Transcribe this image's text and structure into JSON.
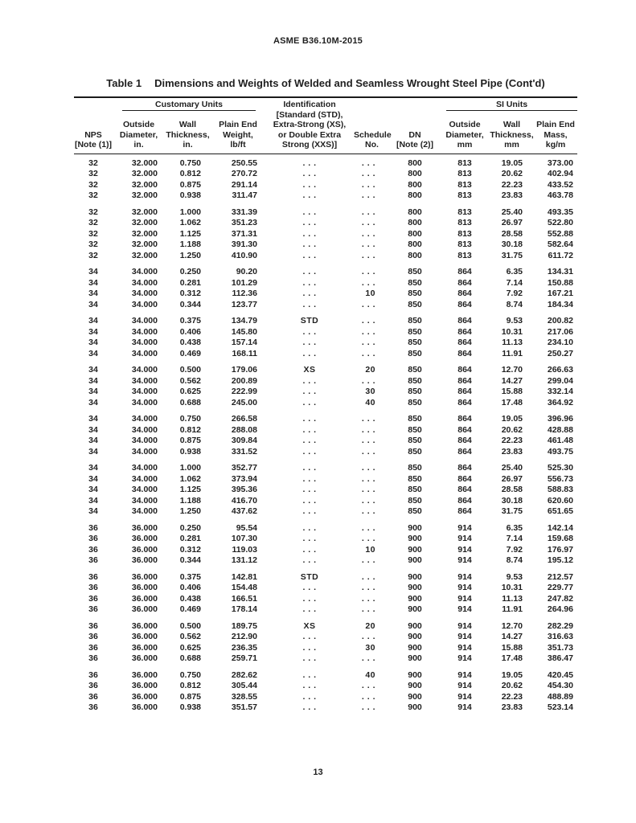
{
  "page": {
    "header": "ASME B36.10M-2015",
    "page_number": "13"
  },
  "colors": {
    "ink": "#1f1f1f",
    "background": "#ffffff",
    "rule": "#1b1b1b"
  },
  "table": {
    "title_label": "Table 1",
    "title_text": "Dimensions and Weights of Welded and Seamless Wrought Steel Pipe (Cont'd)",
    "column_groups": {
      "customary": "Customary Units",
      "si": "SI Units"
    },
    "headers": {
      "nps": [
        "NPS",
        "[Note (1)]"
      ],
      "od_in": [
        "Outside",
        "Diameter,",
        "in."
      ],
      "wt_in": [
        "Wall",
        "Thickness,",
        "in."
      ],
      "pew_lbft": [
        "Plain End",
        "Weight,",
        "lb/ft"
      ],
      "identification": [
        "Identification",
        "[Standard (STD),",
        "Extra-Strong (XS),",
        "or Double Extra",
        "Strong (XXS)]"
      ],
      "schedule": [
        "Schedule",
        "No."
      ],
      "dn": [
        "DN",
        "[Note (2)]"
      ],
      "od_mm": [
        "Outside",
        "Diameter,",
        "mm"
      ],
      "wt_mm": [
        "Wall",
        "Thickness,",
        "mm"
      ],
      "pem_kgm": [
        "Plain End",
        "Mass,",
        "kg/m"
      ]
    },
    "groups": [
      {
        "rows": [
          [
            "32",
            "32.000",
            "0.750",
            "250.55",
            ". . .",
            ". . .",
            "800",
            "813",
            "19.05",
            "373.00"
          ],
          [
            "32",
            "32.000",
            "0.812",
            "270.72",
            ". . .",
            ". . .",
            "800",
            "813",
            "20.62",
            "402.94"
          ],
          [
            "32",
            "32.000",
            "0.875",
            "291.14",
            ". . .",
            ". . .",
            "800",
            "813",
            "22.23",
            "433.52"
          ],
          [
            "32",
            "32.000",
            "0.938",
            "311.47",
            ". . .",
            ". . .",
            "800",
            "813",
            "23.83",
            "463.78"
          ]
        ]
      },
      {
        "rows": [
          [
            "32",
            "32.000",
            "1.000",
            "331.39",
            ". . .",
            ". . .",
            "800",
            "813",
            "25.40",
            "493.35"
          ],
          [
            "32",
            "32.000",
            "1.062",
            "351.23",
            ". . .",
            ". . .",
            "800",
            "813",
            "26.97",
            "522.80"
          ],
          [
            "32",
            "32.000",
            "1.125",
            "371.31",
            ". . .",
            ". . .",
            "800",
            "813",
            "28.58",
            "552.88"
          ],
          [
            "32",
            "32.000",
            "1.188",
            "391.30",
            ". . .",
            ". . .",
            "800",
            "813",
            "30.18",
            "582.64"
          ],
          [
            "32",
            "32.000",
            "1.250",
            "410.90",
            ". . .",
            ". . .",
            "800",
            "813",
            "31.75",
            "611.72"
          ]
        ]
      },
      {
        "rows": [
          [
            "34",
            "34.000",
            "0.250",
            "90.20",
            ". . .",
            ". . .",
            "850",
            "864",
            "6.35",
            "134.31"
          ],
          [
            "34",
            "34.000",
            "0.281",
            "101.29",
            ". . .",
            ". . .",
            "850",
            "864",
            "7.14",
            "150.88"
          ],
          [
            "34",
            "34.000",
            "0.312",
            "112.36",
            ". . .",
            "10",
            "850",
            "864",
            "7.92",
            "167.21"
          ],
          [
            "34",
            "34.000",
            "0.344",
            "123.77",
            ". . .",
            ". . .",
            "850",
            "864",
            "8.74",
            "184.34"
          ]
        ]
      },
      {
        "rows": [
          [
            "34",
            "34.000",
            "0.375",
            "134.79",
            "STD",
            ". . .",
            "850",
            "864",
            "9.53",
            "200.82"
          ],
          [
            "34",
            "34.000",
            "0.406",
            "145.80",
            ". . .",
            ". . .",
            "850",
            "864",
            "10.31",
            "217.06"
          ],
          [
            "34",
            "34.000",
            "0.438",
            "157.14",
            ". . .",
            ". . .",
            "850",
            "864",
            "11.13",
            "234.10"
          ],
          [
            "34",
            "34.000",
            "0.469",
            "168.11",
            ". . .",
            ". . .",
            "850",
            "864",
            "11.91",
            "250.27"
          ]
        ]
      },
      {
        "rows": [
          [
            "34",
            "34.000",
            "0.500",
            "179.06",
            "XS",
            "20",
            "850",
            "864",
            "12.70",
            "266.63"
          ],
          [
            "34",
            "34.000",
            "0.562",
            "200.89",
            ". . .",
            ". . .",
            "850",
            "864",
            "14.27",
            "299.04"
          ],
          [
            "34",
            "34.000",
            "0.625",
            "222.99",
            ". . .",
            "30",
            "850",
            "864",
            "15.88",
            "332.14"
          ],
          [
            "34",
            "34.000",
            "0.688",
            "245.00",
            ". . .",
            "40",
            "850",
            "864",
            "17.48",
            "364.92"
          ]
        ]
      },
      {
        "rows": [
          [
            "34",
            "34.000",
            "0.750",
            "266.58",
            ". . .",
            ". . .",
            "850",
            "864",
            "19.05",
            "396.96"
          ],
          [
            "34",
            "34.000",
            "0.812",
            "288.08",
            ". . .",
            ". . .",
            "850",
            "864",
            "20.62",
            "428.88"
          ],
          [
            "34",
            "34.000",
            "0.875",
            "309.84",
            ". . .",
            ". . .",
            "850",
            "864",
            "22.23",
            "461.48"
          ],
          [
            "34",
            "34.000",
            "0.938",
            "331.52",
            ". . .",
            ". . .",
            "850",
            "864",
            "23.83",
            "493.75"
          ]
        ]
      },
      {
        "rows": [
          [
            "34",
            "34.000",
            "1.000",
            "352.77",
            ". . .",
            ". . .",
            "850",
            "864",
            "25.40",
            "525.30"
          ],
          [
            "34",
            "34.000",
            "1.062",
            "373.94",
            ". . .",
            ". . .",
            "850",
            "864",
            "26.97",
            "556.73"
          ],
          [
            "34",
            "34.000",
            "1.125",
            "395.36",
            ". . .",
            ". . .",
            "850",
            "864",
            "28.58",
            "588.83"
          ],
          [
            "34",
            "34.000",
            "1.188",
            "416.70",
            ". . .",
            ". . .",
            "850",
            "864",
            "30.18",
            "620.60"
          ],
          [
            "34",
            "34.000",
            "1.250",
            "437.62",
            ". . .",
            ". . .",
            "850",
            "864",
            "31.75",
            "651.65"
          ]
        ]
      },
      {
        "rows": [
          [
            "36",
            "36.000",
            "0.250",
            "95.54",
            ". . .",
            ". . .",
            "900",
            "914",
            "6.35",
            "142.14"
          ],
          [
            "36",
            "36.000",
            "0.281",
            "107.30",
            ". . .",
            ". . .",
            "900",
            "914",
            "7.14",
            "159.68"
          ],
          [
            "36",
            "36.000",
            "0.312",
            "119.03",
            ". . .",
            "10",
            "900",
            "914",
            "7.92",
            "176.97"
          ],
          [
            "36",
            "36.000",
            "0.344",
            "131.12",
            ". . .",
            ". . .",
            "900",
            "914",
            "8.74",
            "195.12"
          ]
        ]
      },
      {
        "rows": [
          [
            "36",
            "36.000",
            "0.375",
            "142.81",
            "STD",
            ". . .",
            "900",
            "914",
            "9.53",
            "212.57"
          ],
          [
            "36",
            "36.000",
            "0.406",
            "154.48",
            ". . .",
            ". . .",
            "900",
            "914",
            "10.31",
            "229.77"
          ],
          [
            "36",
            "36.000",
            "0.438",
            "166.51",
            ". . .",
            ". . .",
            "900",
            "914",
            "11.13",
            "247.82"
          ],
          [
            "36",
            "36.000",
            "0.469",
            "178.14",
            ". . .",
            ". . .",
            "900",
            "914",
            "11.91",
            "264.96"
          ]
        ]
      },
      {
        "rows": [
          [
            "36",
            "36.000",
            "0.500",
            "189.75",
            "XS",
            "20",
            "900",
            "914",
            "12.70",
            "282.29"
          ],
          [
            "36",
            "36.000",
            "0.562",
            "212.90",
            ". . .",
            ". . .",
            "900",
            "914",
            "14.27",
            "316.63"
          ],
          [
            "36",
            "36.000",
            "0.625",
            "236.35",
            ". . .",
            "30",
            "900",
            "914",
            "15.88",
            "351.73"
          ],
          [
            "36",
            "36.000",
            "0.688",
            "259.71",
            ". . .",
            ". . .",
            "900",
            "914",
            "17.48",
            "386.47"
          ]
        ]
      },
      {
        "rows": [
          [
            "36",
            "36.000",
            "0.750",
            "282.62",
            ". . .",
            "40",
            "900",
            "914",
            "19.05",
            "420.45"
          ],
          [
            "36",
            "36.000",
            "0.812",
            "305.44",
            ". . .",
            ". . .",
            "900",
            "914",
            "20.62",
            "454.30"
          ],
          [
            "36",
            "36.000",
            "0.875",
            "328.55",
            ". . .",
            ". . .",
            "900",
            "914",
            "22.23",
            "488.89"
          ],
          [
            "36",
            "36.000",
            "0.938",
            "351.57",
            ". . .",
            ". . .",
            "900",
            "914",
            "23.83",
            "523.14"
          ]
        ]
      }
    ]
  }
}
